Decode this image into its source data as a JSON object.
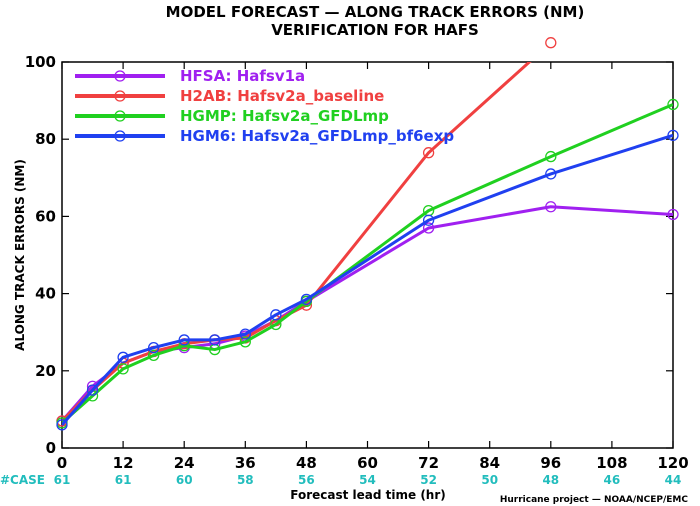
{
  "chart_data": {
    "type": "line",
    "title": "MODEL FORECAST — ALONG TRACK ERRORS (NM)",
    "subtitle": "VERIFICATION FOR HAFS",
    "xlabel": "Forecast lead time (hr)",
    "ylabel": "ALONG TRACK ERRORS (NM)",
    "xlim": [
      0,
      120
    ],
    "ylim": [
      0,
      100
    ],
    "x_ticks": [
      0,
      12,
      24,
      36,
      48,
      60,
      72,
      84,
      96,
      108,
      120
    ],
    "y_ticks": [
      0,
      20,
      40,
      60,
      80,
      100
    ],
    "case_label": "#CASE",
    "case_counts": [
      61,
      61,
      60,
      58,
      56,
      54,
      52,
      50,
      48,
      46,
      44
    ],
    "credit": "Hurricane project — NOAA/NCEP/EMC",
    "legend_position": "top-left",
    "grid": false,
    "series": [
      {
        "name": "HFSA: Hafsv1a",
        "color": "#a020f0",
        "x": [
          0,
          6,
          12,
          18,
          24,
          30,
          36,
          42,
          48,
          72,
          96,
          120
        ],
        "y": [
          7,
          16,
          22,
          25,
          26,
          27,
          29,
          33,
          38,
          57,
          62.5,
          60.5
        ]
      },
      {
        "name": "H2AB: Hafsv2a_baseline",
        "color": "#f04040",
        "x": [
          0,
          6,
          12,
          18,
          24,
          30,
          36,
          42,
          48,
          72,
          96
        ],
        "y": [
          7,
          15,
          22,
          25,
          27,
          28,
          28.5,
          33,
          37,
          76.5,
          105
        ]
      },
      {
        "name": "HGMP: Hafsv2a_GFDLmp",
        "color": "#20d020",
        "x": [
          0,
          6,
          12,
          18,
          24,
          30,
          36,
          42,
          48,
          72,
          96,
          120
        ],
        "y": [
          6.5,
          13.5,
          20.5,
          24,
          26.5,
          25.5,
          27.5,
          32,
          38,
          61.5,
          75.5,
          89
        ]
      },
      {
        "name": "HGM6: Hafsv2a_GFDLmp_bf6exp",
        "color": "#2040f0",
        "x": [
          0,
          6,
          12,
          18,
          24,
          30,
          36,
          42,
          48,
          72,
          96,
          120
        ],
        "y": [
          6,
          15,
          23.5,
          26,
          28,
          28,
          29.5,
          34.5,
          38.5,
          59,
          71,
          81
        ]
      }
    ]
  }
}
